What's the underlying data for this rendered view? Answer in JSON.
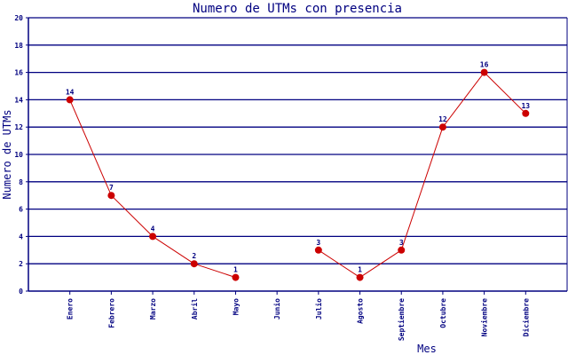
{
  "chart_data": {
    "type": "line",
    "title": "Numero de UTMs con presencia",
    "xlabel": "Mes",
    "ylabel": "Numero de UTMs",
    "ylim": [
      0,
      20
    ],
    "yticks": [
      0,
      2,
      4,
      6,
      8,
      10,
      12,
      14,
      16,
      18,
      20
    ],
    "grid": true,
    "categories": [
      "Enero",
      "Febrero",
      "Marzo",
      "Abril",
      "Mayo",
      "Junio",
      "Julio",
      "Agosto",
      "Septiembre",
      "Octubre",
      "Noviembre",
      "Diciembre"
    ],
    "series": [
      {
        "name": "UTMs",
        "values": [
          14,
          7,
          4,
          2,
          1,
          null,
          3,
          1,
          3,
          12,
          16,
          13
        ],
        "color": "#cc0000"
      }
    ],
    "colors": {
      "axis": "#000080",
      "line": "#cc0000",
      "marker": "#cc0000"
    }
  }
}
